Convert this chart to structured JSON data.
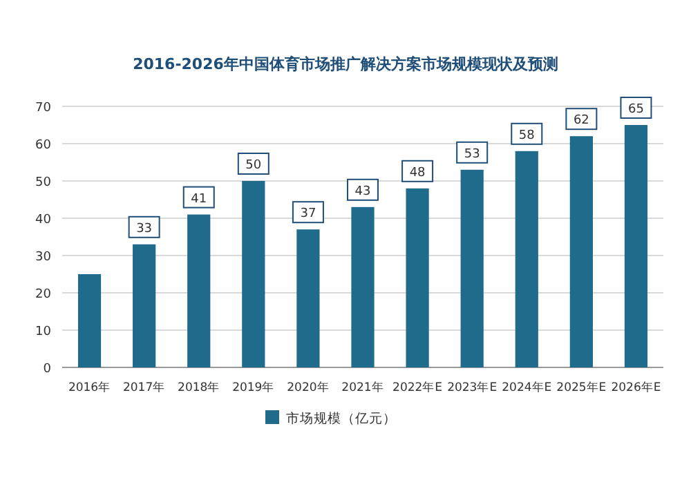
{
  "chart_data": {
    "type": "bar",
    "title": "2016-2026年中国体育市场推广解决方案市场规模现状及预测",
    "categories": [
      "2016年",
      "2017年",
      "2018年",
      "2019年",
      "2020年",
      "2021年",
      "2022年E",
      "2023年E",
      "2024年E",
      "2025年E",
      "2026年E"
    ],
    "series": [
      {
        "name": "市场规模（亿元）",
        "color": "#1f6b8c",
        "values": [
          25,
          33,
          41,
          50,
          37,
          43,
          48,
          53,
          58,
          62,
          65
        ],
        "value_labels": [
          null,
          "33",
          "41",
          "50",
          "37",
          "43",
          "48",
          "53",
          "58",
          "62",
          "65"
        ]
      }
    ],
    "ylim": [
      0,
      70
    ],
    "yticks": [
      0,
      10,
      20,
      30,
      40,
      50,
      60,
      70
    ],
    "grid": "y",
    "legend": "bottom"
  }
}
